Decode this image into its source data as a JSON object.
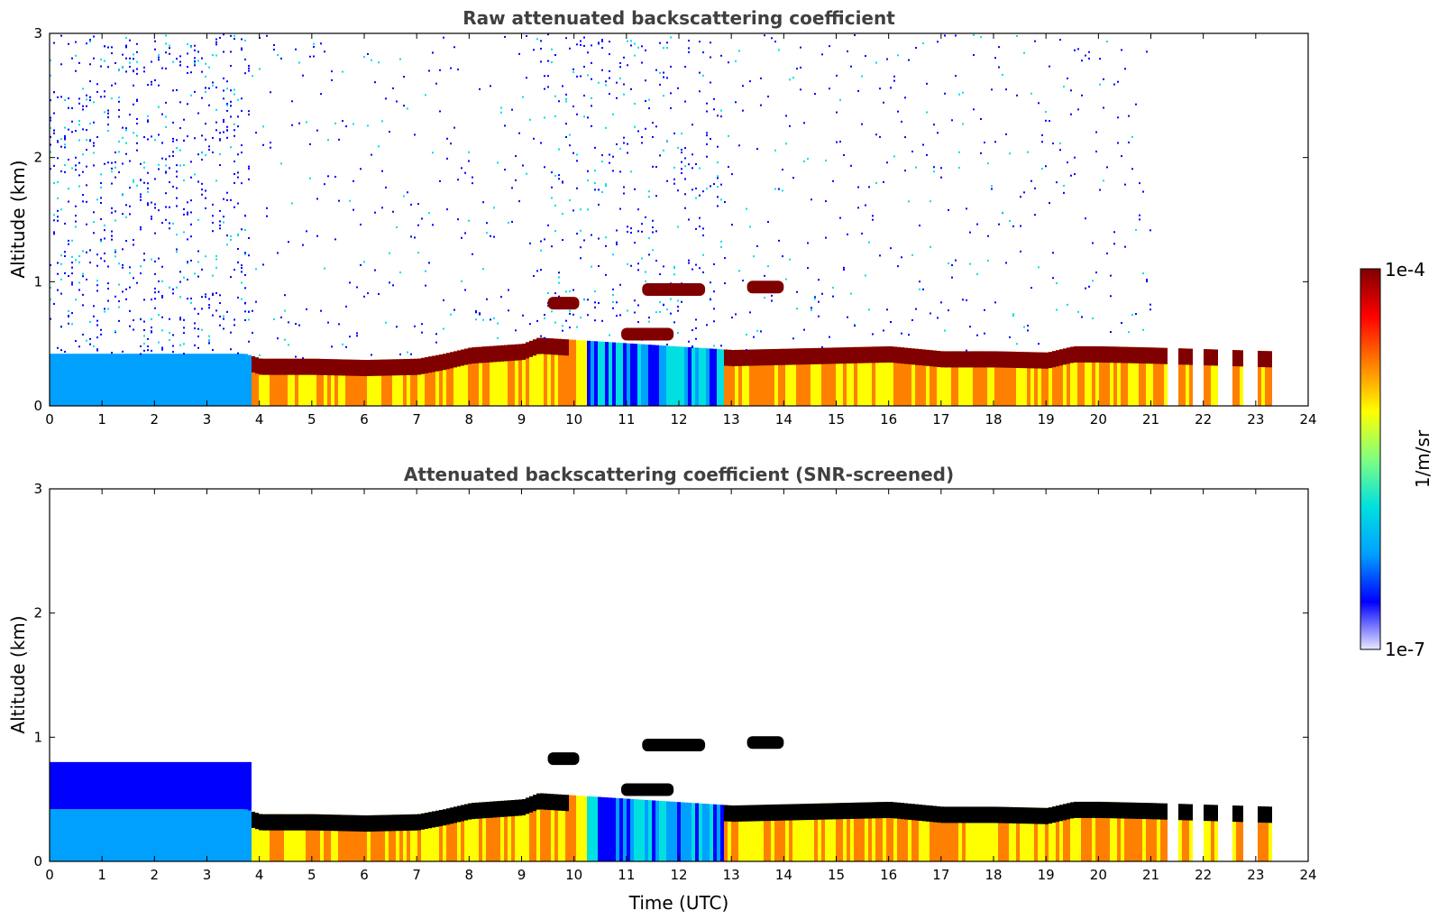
{
  "chart_data": [
    {
      "type": "heatmap",
      "title": "Raw attenuated backscattering coefficient",
      "xlabel": "",
      "ylabel": "Altitude (km)",
      "xlim": [
        0,
        24
      ],
      "ylim": [
        0,
        3
      ],
      "xticks": [
        "0",
        "1",
        "2",
        "3",
        "4",
        "5",
        "6",
        "7",
        "8",
        "9",
        "10",
        "11",
        "12",
        "13",
        "14",
        "15",
        "16",
        "17",
        "18",
        "19",
        "20",
        "21",
        "22",
        "23",
        "24"
      ],
      "yticks": [
        "0",
        "1",
        "2",
        "3"
      ],
      "layer_top_km": [
        [
          0,
          0.42
        ],
        [
          3.7,
          0.42
        ],
        [
          4,
          0.38
        ],
        [
          5,
          0.38
        ],
        [
          6,
          0.37
        ],
        [
          7,
          0.38
        ],
        [
          7.5,
          0.42
        ],
        [
          8,
          0.47
        ],
        [
          9,
          0.5
        ],
        [
          9.3,
          0.55
        ],
        [
          13,
          0.45
        ],
        [
          14,
          0.46
        ],
        [
          15,
          0.47
        ],
        [
          16,
          0.48
        ],
        [
          17,
          0.44
        ],
        [
          18,
          0.44
        ],
        [
          19,
          0.43
        ],
        [
          19.5,
          0.48
        ],
        [
          20,
          0.48
        ],
        [
          21,
          0.47
        ],
        [
          23.3,
          0.44
        ]
      ],
      "elevated_layers": [
        {
          "x_start": 9.5,
          "x_end": 10.1,
          "altitude_km": 0.82
        },
        {
          "x_start": 11.3,
          "x_end": 12.5,
          "altitude_km": 0.93
        },
        {
          "x_start": 10.9,
          "x_end": 11.9,
          "altitude_km": 0.57
        },
        {
          "x_start": 13.3,
          "x_end": 14.0,
          "altitude_km": 0.95
        }
      ],
      "data_end_hour": 23.4
    },
    {
      "type": "heatmap",
      "title": "Attenuated backscattering coefficient (SNR-screened)",
      "xlabel": "Time (UTC)",
      "ylabel": "Altitude (km)",
      "xlim": [
        0,
        24
      ],
      "ylim": [
        0,
        3
      ],
      "xticks": [
        "0",
        "1",
        "2",
        "3",
        "4",
        "5",
        "6",
        "7",
        "8",
        "9",
        "10",
        "11",
        "12",
        "13",
        "14",
        "15",
        "16",
        "17",
        "18",
        "19",
        "20",
        "21",
        "22",
        "23",
        "24"
      ],
      "yticks": [
        "0",
        "1",
        "2",
        "3"
      ],
      "layer_top_km": [
        [
          0,
          0.42
        ],
        [
          3.7,
          0.42
        ],
        [
          4,
          0.38
        ],
        [
          5,
          0.38
        ],
        [
          6,
          0.37
        ],
        [
          7,
          0.38
        ],
        [
          7.5,
          0.42
        ],
        [
          8,
          0.47
        ],
        [
          9,
          0.5
        ],
        [
          9.3,
          0.55
        ],
        [
          13,
          0.45
        ],
        [
          14,
          0.46
        ],
        [
          15,
          0.47
        ],
        [
          16,
          0.48
        ],
        [
          17,
          0.44
        ],
        [
          18,
          0.44
        ],
        [
          19,
          0.43
        ],
        [
          19.5,
          0.48
        ],
        [
          20,
          0.48
        ],
        [
          21,
          0.47
        ],
        [
          23.3,
          0.44
        ]
      ],
      "elevated_layers": [
        {
          "x_start": 9.5,
          "x_end": 10.1,
          "altitude_km": 0.82
        },
        {
          "x_start": 11.3,
          "x_end": 12.5,
          "altitude_km": 0.93
        },
        {
          "x_start": 10.9,
          "x_end": 11.9,
          "altitude_km": 0.57
        },
        {
          "x_start": 13.3,
          "x_end": 14.0,
          "altitude_km": 0.95
        }
      ],
      "data_end_hour": 23.4
    }
  ],
  "colorbar": {
    "min_label": "1e-7",
    "max_label": "1e-4",
    "units": "1/m/sr",
    "colormap": "jet",
    "colors": [
      "#e8e8ff",
      "#0000ff",
      "#00a0ff",
      "#00e0e0",
      "#80ff80",
      "#ffff00",
      "#ff8000",
      "#ff0000",
      "#800000"
    ]
  }
}
